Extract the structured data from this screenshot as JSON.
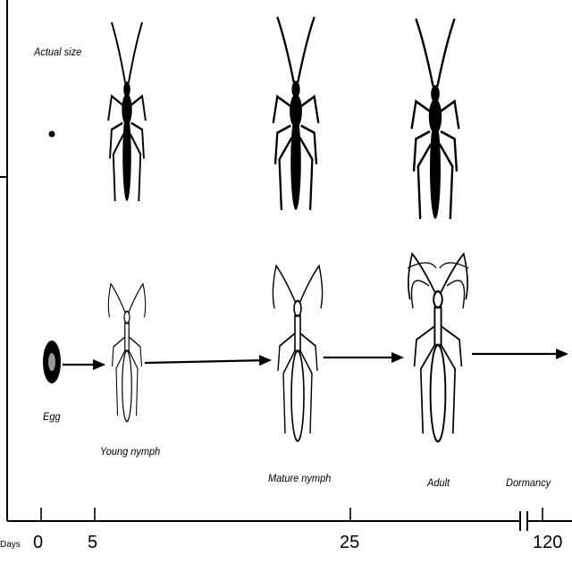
{
  "caption": {
    "actual_size": "Actual size"
  },
  "stages": [
    {
      "id": "egg",
      "label": "Egg"
    },
    {
      "id": "young",
      "label": "Young nymph"
    },
    {
      "id": "mature",
      "label": "Mature nymph"
    },
    {
      "id": "adult",
      "label": "Adult"
    },
    {
      "id": "dormancy",
      "label": "Dormancy"
    }
  ],
  "timeline": {
    "unit_label": "Days",
    "ticks": [
      "0",
      "5",
      "25",
      "120"
    ]
  },
  "colors": {
    "ink": "#000000",
    "paper": "#ffffff"
  }
}
